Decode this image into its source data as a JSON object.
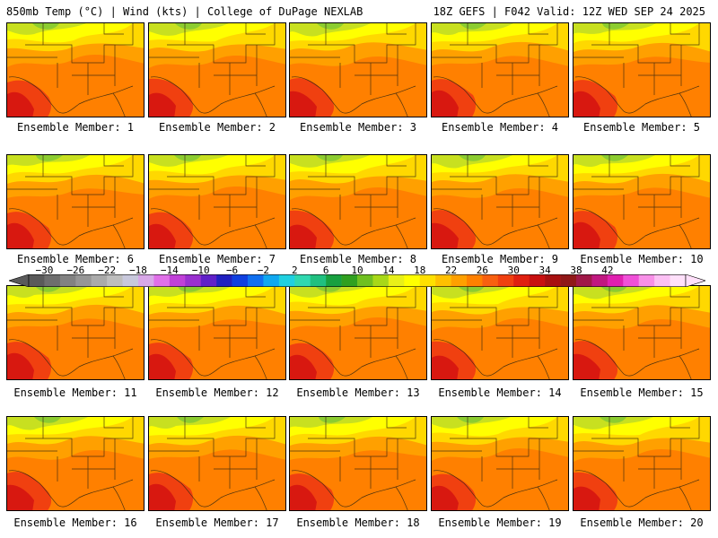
{
  "header": {
    "left": "850mb Temp (°C) | Wind (kts) | College of DuPage NEXLAB",
    "right": "18Z GEFS | F042 Valid: 12Z WED SEP 24 2025"
  },
  "panels": [
    {
      "caption": "Ensemble Member: 1"
    },
    {
      "caption": "Ensemble Member: 2"
    },
    {
      "caption": "Ensemble Member: 3"
    },
    {
      "caption": "Ensemble Member: 4"
    },
    {
      "caption": "Ensemble Member: 5"
    },
    {
      "caption": "Ensemble Member: 6"
    },
    {
      "caption": "Ensemble Member: 7"
    },
    {
      "caption": "Ensemble Member: 8"
    },
    {
      "caption": "Ensemble Member: 9"
    },
    {
      "caption": "Ensemble Member: 10"
    },
    {
      "caption": "Ensemble Member: 11"
    },
    {
      "caption": "Ensemble Member: 12"
    },
    {
      "caption": "Ensemble Member: 13"
    },
    {
      "caption": "Ensemble Member: 14"
    },
    {
      "caption": "Ensemble Member: 15"
    },
    {
      "caption": "Ensemble Member: 16"
    },
    {
      "caption": "Ensemble Member: 17"
    },
    {
      "caption": "Ensemble Member: 18"
    },
    {
      "caption": "Ensemble Member: 19"
    },
    {
      "caption": "Ensemble Member: 20"
    }
  ],
  "colorbar": {
    "tick_labels": [
      "−30",
      "−26",
      "−22",
      "−18",
      "−14",
      "−10",
      "−6",
      "−2",
      "2",
      "6",
      "10",
      "14",
      "18",
      "22",
      "26",
      "30",
      "34",
      "38",
      "42"
    ],
    "colors": [
      "#5a5a5a",
      "#6e6e6e",
      "#828282",
      "#969696",
      "#aaaaaa",
      "#bebebe",
      "#c8c8dc",
      "#d8a8e8",
      "#e070e8",
      "#c040d8",
      "#9a30d0",
      "#6020c8",
      "#2020c0",
      "#1040e0",
      "#1070f0",
      "#10a8f0",
      "#20d0e0",
      "#30d8b0",
      "#20c080",
      "#18a040",
      "#30a020",
      "#70c020",
      "#a8d818",
      "#e8f018",
      "#ffff00",
      "#ffe000",
      "#ffc000",
      "#ffa000",
      "#ff8000",
      "#f86010",
      "#f04010",
      "#e02010",
      "#c81010",
      "#a81010",
      "#901818",
      "#a01848",
      "#c01880",
      "#e020b0",
      "#f050d8",
      "#f890e8",
      "#fcc0f4",
      "#ffe0fa"
    ]
  },
  "map_colors": {
    "green": "#8ccc30",
    "lime": "#c8e020",
    "yellow": "#ffff00",
    "gold": "#ffd800",
    "orange": "#ffa000",
    "darkorange": "#ff8000",
    "red": "#f04010",
    "darkred": "#d81810"
  }
}
